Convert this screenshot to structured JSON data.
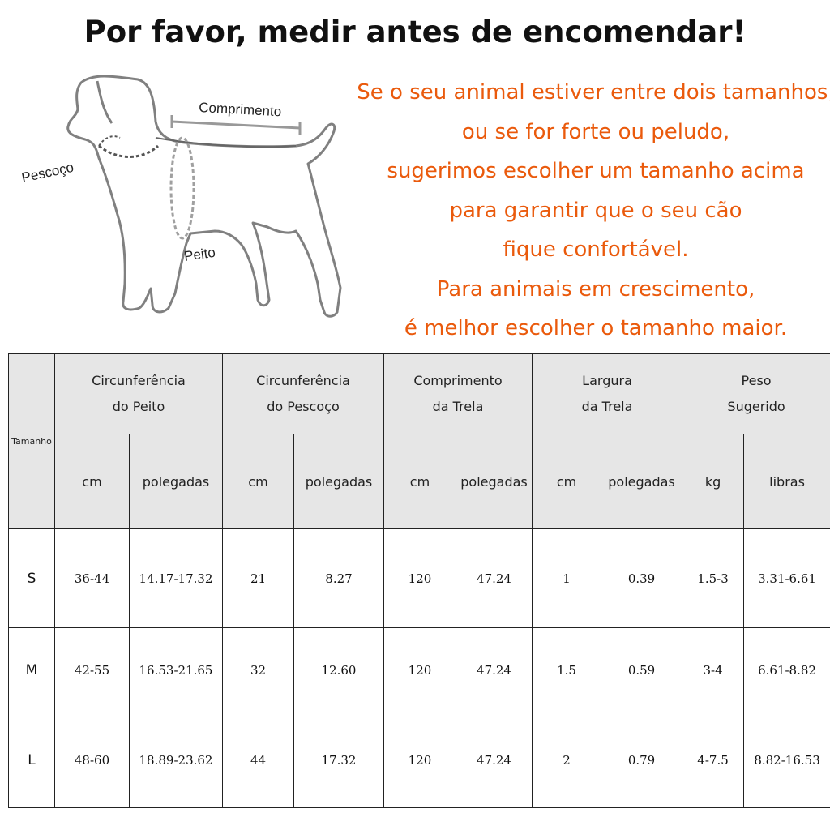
{
  "title": "Por favor, medir antes de encomendar!",
  "diagram": {
    "length_label": "Comprimento",
    "neck_label": "Pescoço",
    "chest_label": "Peito"
  },
  "advice_lines": [
    "Se o seu animal estiver entre dois tamanhos,",
    "ou se for forte ou peludo,",
    "sugerimos escolher um tamanho acima",
    "para garantir que o seu cão",
    "fique confortável.",
    "Para animais em crescimento,",
    "é melhor escolher o tamanho maior."
  ],
  "colors": {
    "advice": "#ea5a0c",
    "header_bg": "#e6e6e6"
  },
  "table": {
    "size_header": "Tamanho",
    "groups": [
      {
        "line1": "Circunferência",
        "line2": "do Peito"
      },
      {
        "line1": "Circunferência",
        "line2": "do Pescoço"
      },
      {
        "line1": "Comprimento",
        "line2": "da Trela"
      },
      {
        "line1": "Largura",
        "line2": "da Trela"
      },
      {
        "line1": "Peso",
        "line2": "Sugerido"
      }
    ],
    "units": [
      "cm",
      "polegadas",
      "cm",
      "polegadas",
      "cm",
      "polegadas",
      "cm",
      "polegadas",
      "kg",
      "libras"
    ],
    "rows": [
      {
        "size": "S",
        "values": [
          "36-44",
          "14.17-17.32",
          "21",
          "8.27",
          "120",
          "47.24",
          "1",
          "0.39",
          "1.5-3",
          "3.31-6.61"
        ]
      },
      {
        "size": "M",
        "values": [
          "42-55",
          "16.53-21.65",
          "32",
          "12.60",
          "120",
          "47.24",
          "1.5",
          "0.59",
          "3-4",
          "6.61-8.82"
        ]
      },
      {
        "size": "L",
        "values": [
          "48-60",
          "18.89-23.62",
          "44",
          "17.32",
          "120",
          "47.24",
          "2",
          "0.79",
          "4-7.5",
          "8.82-16.53"
        ]
      }
    ]
  }
}
